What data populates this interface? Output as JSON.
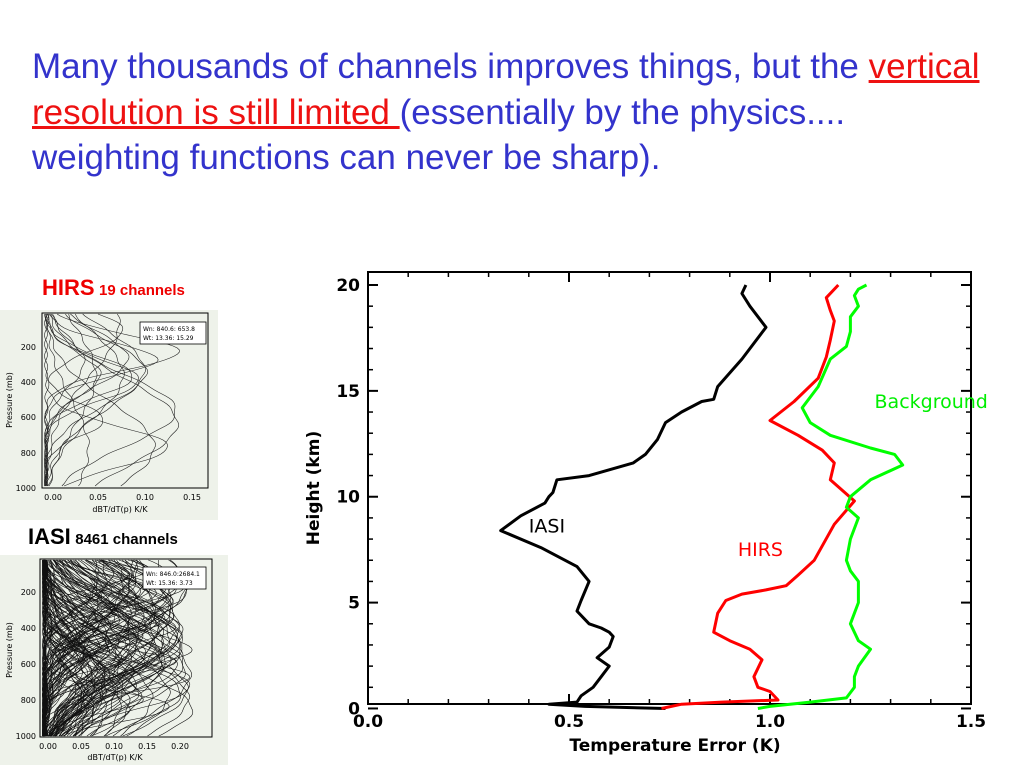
{
  "headline": {
    "part1": "Many thousands of channels improves things, but the ",
    "highlight": "vertical resolution is still limited ",
    "part2": "(essentially by the physics.... weighting functions can never be sharp)."
  },
  "colors": {
    "headline": "#3333cc",
    "highlight": "#ee1111",
    "iasi": "#000000",
    "hirs": "#ff0000",
    "background": "#00ee00"
  },
  "panels": {
    "hirs": {
      "title_big": "HIRS",
      "title_small": "19 channels",
      "ylabel": "Pressure (mb)",
      "xlabel": "dBT/dT(p) K/K",
      "yticks": [
        "200",
        "400",
        "600",
        "800",
        "1000"
      ],
      "xticks": [
        "0.00",
        "0.05",
        "0.10",
        "0.15"
      ],
      "legend": [
        "Wn: 840.6: 653.8",
        "Wt: 13.36: 15.29"
      ]
    },
    "iasi": {
      "title_big": "IASI",
      "title_small": "8461 channels",
      "ylabel": "Pressure (mb)",
      "xlabel": "dBT/dT(p) K/K",
      "yticks": [
        "200",
        "400",
        "600",
        "800",
        "1000"
      ],
      "xticks": [
        "0.00",
        "0.05",
        "0.10",
        "0.15",
        "0.20"
      ],
      "legend": [
        "Wn: 846.0:2684.1",
        "Wt: 15.36: 3.73"
      ]
    }
  },
  "chart_data": {
    "type": "line",
    "title": "",
    "xlabel": "Temperature Error (K)",
    "ylabel": "Height (km)",
    "xlim": [
      0.0,
      1.5
    ],
    "ylim": [
      0,
      20
    ],
    "xticks": [
      "0.0",
      "0.5",
      "1.0",
      "1.5"
    ],
    "yticks": [
      "0",
      "5",
      "10",
      "15",
      "20"
    ],
    "grid": false,
    "series": [
      {
        "name": "IASI",
        "color": "#000000",
        "x": [
          0.74,
          0.54,
          0.45,
          0.52,
          0.53,
          0.56,
          0.58,
          0.6,
          0.57,
          0.6,
          0.61,
          0.6,
          0.58,
          0.55,
          0.52,
          0.53,
          0.55,
          0.52,
          0.43,
          0.33,
          0.38,
          0.43,
          0.44,
          0.45,
          0.46,
          0.47,
          0.55,
          0.66,
          0.69,
          0.72,
          0.74,
          0.78,
          0.83,
          0.86,
          0.87,
          0.93,
          0.99,
          0.95,
          0.93,
          0.94
        ],
        "y": [
          0,
          0.1,
          0.2,
          0.3,
          0.6,
          1.0,
          1.5,
          2.0,
          2.4,
          2.9,
          3.4,
          3.6,
          3.8,
          4.0,
          4.6,
          5.1,
          6.0,
          6.7,
          7.6,
          8.4,
          9.1,
          9.6,
          9.7,
          10.0,
          10.2,
          10.8,
          11.0,
          11.6,
          12.0,
          12.7,
          13.5,
          14.0,
          14.5,
          14.6,
          15.2,
          16.5,
          18.0,
          19.0,
          19.6,
          20.0
        ]
      },
      {
        "name": "HIRS",
        "color": "#ff0000",
        "x": [
          0.73,
          0.78,
          0.88,
          1.02,
          1.0,
          0.97,
          0.96,
          0.98,
          0.95,
          0.9,
          0.86,
          0.87,
          0.89,
          0.93,
          0.99,
          1.04,
          1.07,
          1.11,
          1.16,
          1.21,
          1.15,
          1.16,
          1.13,
          1.07,
          1.0,
          1.06,
          1.12,
          1.14,
          1.15,
          1.16,
          1.15,
          1.14,
          1.17
        ],
        "y": [
          0,
          0.2,
          0.3,
          0.4,
          0.8,
          1.0,
          1.5,
          2.3,
          2.8,
          3.2,
          3.6,
          4.5,
          5.1,
          5.4,
          5.6,
          5.8,
          6.3,
          7.0,
          8.7,
          9.8,
          10.8,
          11.6,
          12.2,
          12.9,
          13.6,
          14.5,
          15.6,
          16.6,
          17.4,
          18.3,
          18.8,
          19.4,
          20.0
        ]
      },
      {
        "name": "Background",
        "color": "#00ff00",
        "x": [
          0.97,
          1.0,
          1.05,
          1.1,
          1.19,
          1.21,
          1.21,
          1.22,
          1.25,
          1.22,
          1.2,
          1.22,
          1.22,
          1.2,
          1.19,
          1.2,
          1.22,
          1.19,
          1.2,
          1.25,
          1.33,
          1.31,
          1.25,
          1.15,
          1.1,
          1.08,
          1.12,
          1.15,
          1.19,
          1.2,
          1.2,
          1.22,
          1.21,
          1.22,
          1.24
        ],
        "y": [
          0,
          0.1,
          0.2,
          0.3,
          0.5,
          1.0,
          1.5,
          2.0,
          2.8,
          3.2,
          4.0,
          5.0,
          6.0,
          6.5,
          7.0,
          8.0,
          9.0,
          9.5,
          10.0,
          10.8,
          11.5,
          12.0,
          12.3,
          12.9,
          13.5,
          14.2,
          15.2,
          16.5,
          17.1,
          17.8,
          18.5,
          19.0,
          19.5,
          19.8,
          20.0
        ]
      }
    ],
    "annotations": [
      {
        "text": "IASI",
        "x": 0.4,
        "y": 8.3,
        "color": "#000000"
      },
      {
        "text": "HIRS",
        "x": 0.92,
        "y": 7.2,
        "color": "#ff0000"
      },
      {
        "text": "Background",
        "x": 1.26,
        "y": 14.2,
        "color": "#00ee00"
      }
    ]
  }
}
